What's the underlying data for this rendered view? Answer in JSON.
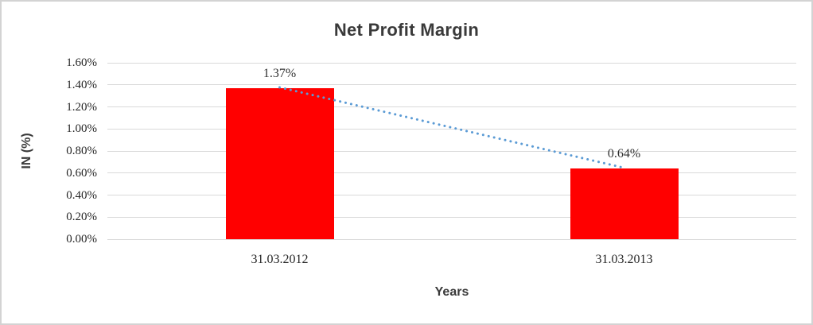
{
  "chart_data": {
    "type": "bar",
    "title": "Net Profit Margin",
    "xlabel": "Years",
    "ylabel": "IN (%)",
    "categories": [
      "31.03.2012",
      "31.03.2013"
    ],
    "values": [
      1.37,
      0.64
    ],
    "data_labels": [
      "1.37%",
      "0.64%"
    ],
    "yticks": [
      "0.00%",
      "0.20%",
      "0.40%",
      "0.60%",
      "0.80%",
      "1.00%",
      "1.20%",
      "1.40%",
      "1.60%"
    ],
    "ylim": [
      0,
      1.6
    ],
    "grid": true,
    "legend": "none",
    "bar_color": "#FF0000",
    "trendline": {
      "style": "dotted",
      "color": "#5B9BD5",
      "from_value": 1.37,
      "to_value": 0.64
    },
    "colors": {
      "title_text": "#3a3a3a",
      "tick_text": "#262626",
      "gridline": "#d9d9d9",
      "chart_border": "#d3d3d3",
      "background": "#ffffff"
    }
  }
}
